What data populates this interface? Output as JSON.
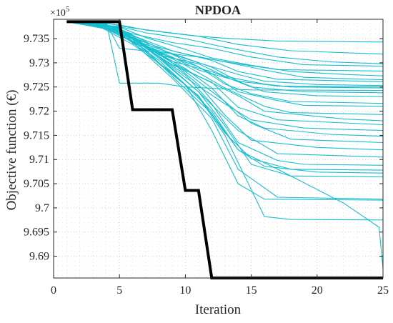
{
  "chart_data": {
    "type": "line",
    "title": "NPDOA",
    "xlabel": "Iteration",
    "ylabel": "Objective function (€)",
    "y_exponent_label": "×10",
    "y_exponent_power": "5",
    "xlim": [
      0,
      25
    ],
    "ylim": [
      9.6855,
      9.739
    ],
    "x_ticks": [
      0,
      5,
      10,
      15,
      20,
      25
    ],
    "x_tick_labels": [
      "0",
      "5",
      "10",
      "15",
      "20",
      "25"
    ],
    "y_ticks": [
      9.69,
      9.695,
      9.7,
      9.705,
      9.71,
      9.715,
      9.72,
      9.725,
      9.73,
      9.735
    ],
    "y_tick_labels": [
      "9.69",
      "9.695",
      "9.7",
      "9.705",
      "9.71",
      "9.715",
      "9.72",
      "9.725",
      "9.73",
      "9.735"
    ],
    "grid": true,
    "colors": {
      "runs": "#17becf",
      "best": "#000000",
      "grid": "#bfbfbf",
      "axis": "#262626"
    },
    "best_series": {
      "x": [
        1,
        5,
        6,
        9,
        10,
        11,
        12,
        25
      ],
      "y": [
        9.7385,
        9.7385,
        9.7203,
        9.7203,
        9.7036,
        9.7036,
        9.6855,
        9.6855
      ]
    },
    "runs": [
      {
        "x": [
          1,
          3,
          5,
          7,
          9,
          11,
          13,
          15,
          17,
          25
        ],
        "y": [
          9.7385,
          9.7385,
          9.7378,
          9.7368,
          9.7361,
          9.7355,
          9.7351,
          9.7348,
          9.7345,
          9.7343
        ]
      },
      {
        "x": [
          1,
          4,
          6,
          8,
          11,
          14,
          18,
          25
        ],
        "y": [
          9.7385,
          9.7382,
          9.7372,
          9.7365,
          9.7355,
          9.7338,
          9.7325,
          9.7318
        ]
      },
      {
        "x": [
          1,
          5,
          7,
          10,
          13,
          17,
          21,
          25
        ],
        "y": [
          9.7385,
          9.7375,
          9.7362,
          9.735,
          9.7332,
          9.7312,
          9.7302,
          9.7298
        ]
      },
      {
        "x": [
          1,
          3,
          6,
          9,
          12,
          15,
          19,
          25
        ],
        "y": [
          9.7385,
          9.7383,
          9.736,
          9.7342,
          9.733,
          9.7312,
          9.7296,
          9.7293
        ]
      },
      {
        "x": [
          1,
          4,
          5,
          8,
          11,
          14,
          17,
          25
        ],
        "y": [
          9.7385,
          9.7381,
          9.733,
          9.7322,
          9.7312,
          9.7298,
          9.7286,
          9.7283
        ]
      },
      {
        "x": [
          1,
          5,
          7,
          10,
          12,
          15,
          18,
          22,
          25
        ],
        "y": [
          9.7385,
          9.7374,
          9.7352,
          9.7328,
          9.731,
          9.7295,
          9.7282,
          9.7276,
          9.7273
        ]
      },
      {
        "x": [
          1,
          3,
          5,
          8,
          10,
          13,
          16,
          19,
          25
        ],
        "y": [
          9.7385,
          9.7384,
          9.7361,
          9.7332,
          9.7318,
          9.7302,
          9.7285,
          9.727,
          9.7265
        ]
      },
      {
        "x": [
          1,
          4,
          7,
          9,
          12,
          14,
          17,
          25
        ],
        "y": [
          9.7385,
          9.7378,
          9.7346,
          9.7325,
          9.7305,
          9.7282,
          9.7266,
          9.7261
        ]
      },
      {
        "x": [
          1,
          5,
          6,
          9,
          11,
          14,
          16,
          20,
          25
        ],
        "y": [
          9.7385,
          9.7372,
          9.734,
          9.7318,
          9.73,
          9.7276,
          9.7262,
          9.7255,
          9.7253
        ]
      },
      {
        "x": [
          1,
          3,
          6,
          8,
          11,
          13,
          16,
          18,
          25
        ],
        "y": [
          9.7385,
          9.738,
          9.7356,
          9.7316,
          9.7298,
          9.7272,
          9.7256,
          9.725,
          9.7248
        ]
      },
      {
        "x": [
          1,
          4,
          7,
          10,
          12,
          14,
          17,
          25
        ],
        "y": [
          9.7385,
          9.7377,
          9.7338,
          9.731,
          9.7291,
          9.7262,
          9.7252,
          9.725
        ]
      },
      {
        "x": [
          1,
          4,
          5,
          8,
          10,
          13,
          15,
          25
        ],
        "y": [
          9.7385,
          9.7383,
          9.7258,
          9.7258,
          9.725,
          9.7246,
          9.7244,
          9.7243
        ]
      },
      {
        "x": [
          1,
          5,
          7,
          9,
          12,
          15,
          19,
          25
        ],
        "y": [
          9.7385,
          9.7369,
          9.7335,
          9.7303,
          9.7282,
          9.725,
          9.724,
          9.7238
        ]
      },
      {
        "x": [
          1,
          3,
          6,
          9,
          11,
          14,
          16,
          20,
          25
        ],
        "y": [
          9.7385,
          9.7382,
          9.7345,
          9.7312,
          9.7285,
          9.7262,
          9.724,
          9.7232,
          9.723
        ]
      },
      {
        "x": [
          1,
          4,
          6,
          8,
          11,
          13,
          15,
          18,
          25
        ],
        "y": [
          9.7385,
          9.7379,
          9.735,
          9.732,
          9.7292,
          9.7256,
          9.7236,
          9.722,
          9.7216
        ]
      },
      {
        "x": [
          1,
          5,
          8,
          10,
          12,
          14,
          17,
          19,
          25
        ],
        "y": [
          9.7385,
          9.7371,
          9.733,
          9.7305,
          9.7278,
          9.724,
          9.7222,
          9.7212,
          9.721
        ]
      },
      {
        "x": [
          1,
          3,
          5,
          8,
          10,
          13,
          16,
          18,
          25
        ],
        "y": [
          9.7385,
          9.7384,
          9.7364,
          9.7322,
          9.7295,
          9.7248,
          9.721,
          9.7197,
          9.7193
        ]
      },
      {
        "x": [
          1,
          4,
          7,
          9,
          11,
          14,
          16,
          22,
          25
        ],
        "y": [
          9.7385,
          9.7376,
          9.7342,
          9.73,
          9.7272,
          9.7232,
          9.72,
          9.7184,
          9.718
        ]
      },
      {
        "x": [
          1,
          5,
          6,
          9,
          12,
          14,
          17,
          25
        ],
        "y": [
          9.7385,
          9.7373,
          9.7348,
          9.7296,
          9.726,
          9.7208,
          9.7182,
          9.7172
        ]
      },
      {
        "x": [
          1,
          3,
          6,
          8,
          10,
          13,
          15,
          19,
          25
        ],
        "y": [
          9.7385,
          9.7383,
          9.7357,
          9.7312,
          9.727,
          9.7215,
          9.7182,
          9.7165,
          9.716
        ]
      },
      {
        "x": [
          1,
          4,
          7,
          10,
          12,
          14,
          16,
          21,
          25
        ],
        "y": [
          9.7385,
          9.738,
          9.7335,
          9.7288,
          9.7248,
          9.719,
          9.7165,
          9.7152,
          9.7148
        ]
      },
      {
        "x": [
          1,
          5,
          8,
          10,
          13,
          15,
          18,
          25
        ],
        "y": [
          9.7385,
          9.7368,
          9.7318,
          9.7282,
          9.722,
          9.7175,
          9.7142,
          9.7135
        ]
      },
      {
        "x": [
          1,
          3,
          6,
          9,
          11,
          13,
          15,
          20,
          25
        ],
        "y": [
          9.7385,
          9.7384,
          9.7351,
          9.73,
          9.7255,
          9.7192,
          9.714,
          9.7125,
          9.712
        ]
      },
      {
        "x": [
          1,
          4,
          6,
          8,
          11,
          14,
          17,
          25
        ],
        "y": [
          9.7385,
          9.7378,
          9.7353,
          9.7309,
          9.724,
          9.716,
          9.7112,
          9.7105
        ]
      },
      {
        "x": [
          1,
          5,
          7,
          10,
          12,
          14,
          17,
          19,
          25
        ],
        "y": [
          9.7385,
          9.737,
          9.7332,
          9.7275,
          9.7215,
          9.7135,
          9.7098,
          9.709,
          9.7088
        ]
      },
      {
        "x": [
          1,
          3,
          6,
          8,
          11,
          13,
          15,
          18,
          25
        ],
        "y": [
          9.7385,
          9.7381,
          9.7349,
          9.7298,
          9.7232,
          9.7155,
          9.7102,
          9.708,
          9.7078
        ]
      },
      {
        "x": [
          1,
          4,
          7,
          9,
          12,
          14,
          16,
          20,
          25
        ],
        "y": [
          9.7385,
          9.7377,
          9.7327,
          9.7272,
          9.7195,
          9.712,
          9.7086,
          9.7074,
          9.7072
        ]
      },
      {
        "x": [
          1,
          5,
          8,
          11,
          13,
          15,
          18,
          25
        ],
        "y": [
          9.7385,
          9.7367,
          9.7312,
          9.724,
          9.717,
          9.709,
          9.7066,
          9.7064
        ]
      },
      {
        "x": [
          1,
          3,
          6,
          9,
          12,
          14,
          17,
          25
        ],
        "y": [
          9.7385,
          9.7383,
          9.7343,
          9.7268,
          9.7185,
          9.708,
          9.7022,
          9.7018
        ]
      },
      {
        "x": [
          1,
          4,
          7,
          10,
          12,
          14,
          16,
          25
        ],
        "y": [
          9.7385,
          9.7379,
          9.7322,
          9.7255,
          9.716,
          9.705,
          9.7018,
          9.7016
        ]
      },
      {
        "x": [
          1,
          5,
          8,
          11,
          13,
          16,
          18,
          25
        ],
        "y": [
          9.7385,
          9.7365,
          9.7305,
          9.723,
          9.715,
          9.6982,
          9.6976,
          9.6975
        ]
      },
      {
        "x": [
          1,
          3,
          6,
          9,
          12,
          14,
          17,
          22,
          24.7,
          25
        ],
        "y": [
          9.7385,
          9.7382,
          9.7338,
          9.728,
          9.72,
          9.712,
          9.708,
          9.701,
          9.696,
          9.6875
        ]
      }
    ]
  }
}
